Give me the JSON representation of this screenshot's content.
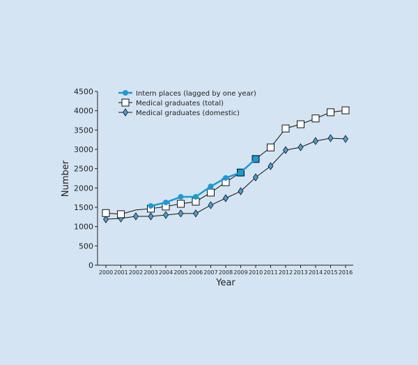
{
  "chart_data": {
    "type": "line",
    "title": "",
    "xlabel": "Year",
    "ylabel": "Number",
    "ylim": [
      0,
      4500
    ],
    "yticks": [
      0,
      500,
      1000,
      1500,
      2000,
      2500,
      3000,
      3500,
      4000,
      4500
    ],
    "x": [
      2000,
      2001,
      2002,
      2003,
      2004,
      2005,
      2006,
      2007,
      2008,
      2009,
      2010,
      2011,
      2012,
      2013,
      2014,
      2015,
      2016
    ],
    "legend_position": "top-left",
    "series": [
      {
        "name": "Intern places (lagged by one year)",
        "color": "#1a9ad6",
        "marker": "circle",
        "values": [
          null,
          null,
          null,
          1535,
          1625,
          1770,
          1770,
          2040,
          2260,
          2400,
          2750,
          null,
          null,
          null,
          null,
          null,
          null
        ]
      },
      {
        "name": "Medical graduates (total)",
        "color": "#111111",
        "marker": "square",
        "values": [
          1350,
          1320,
          1430,
          1465,
          1520,
          1590,
          1645,
          1880,
          2150,
          2400,
          2750,
          3050,
          3540,
          3650,
          3800,
          3960,
          4010
        ],
        "marker_missing": [
          2002
        ]
      },
      {
        "name": "Medical graduates (domestic)",
        "color": "#111111",
        "marker": "diamond",
        "marker_fill": "#4a9fd4",
        "values": [
          1190,
          1210,
          1265,
          1265,
          1300,
          1340,
          1340,
          1555,
          1735,
          1915,
          2275,
          2565,
          2980,
          3055,
          3215,
          3290,
          3270
        ]
      }
    ]
  }
}
